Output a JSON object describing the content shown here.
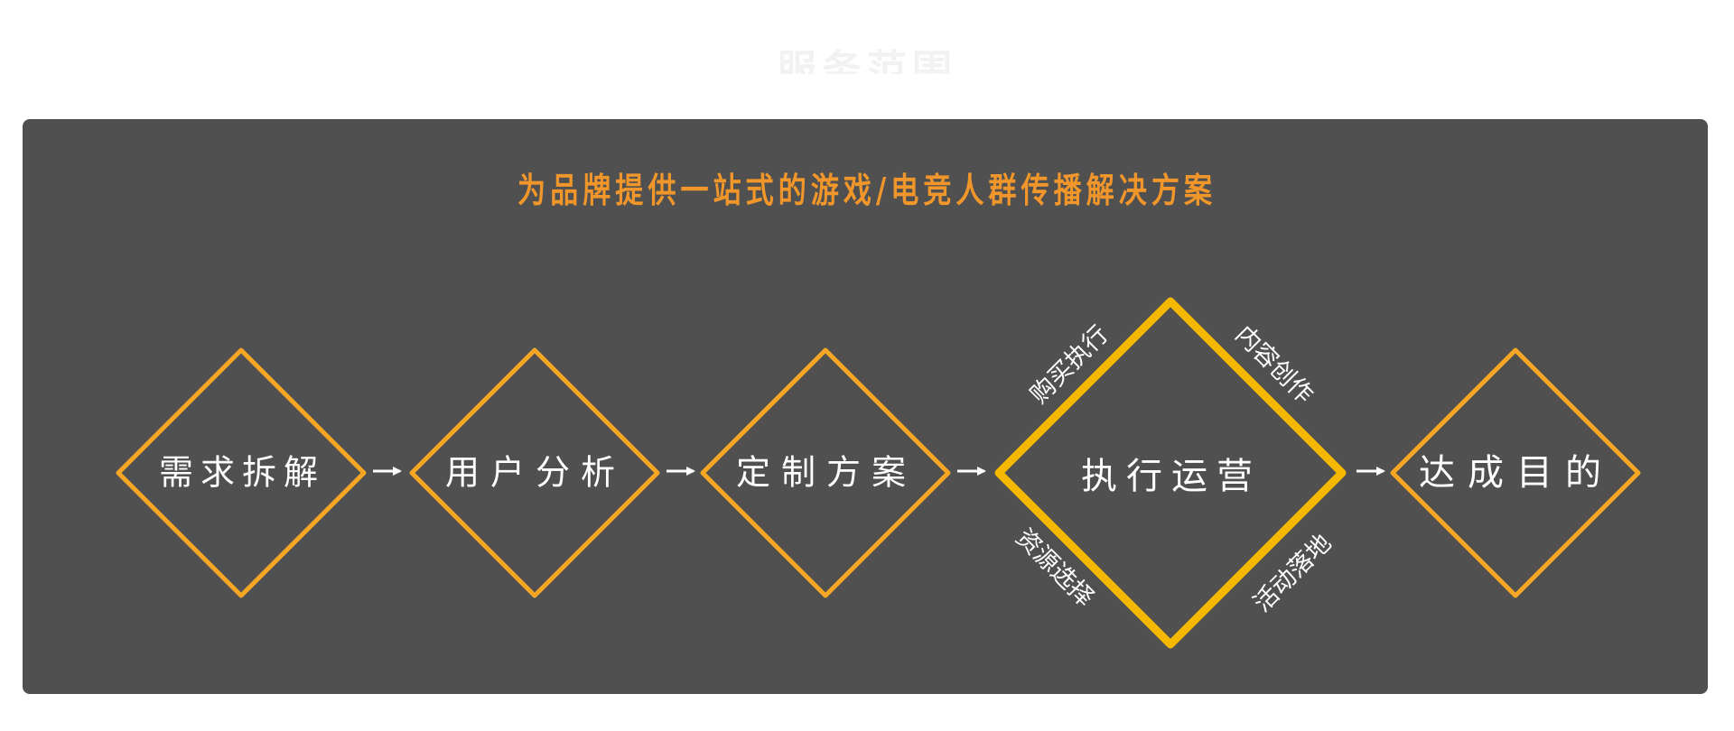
{
  "header": {
    "faint_title": "服务范围"
  },
  "panel": {
    "title": "为品牌提供一站式的游戏/电竞人群传播解决方案",
    "title_color": "#f0962a",
    "background": "#505050"
  },
  "colors": {
    "step_border": "#f5a623",
    "highlight_border": "#f5b800",
    "text": "#ffffff",
    "arrow": "#ffffff"
  },
  "steps": [
    {
      "label": "需求拆解"
    },
    {
      "label": "用户分析"
    },
    {
      "label": "定制方案"
    },
    {
      "label": "执行运营",
      "highlight": true
    },
    {
      "label": "达成目的"
    }
  ],
  "execution_facets": {
    "top_left": "购买执行",
    "top_right": "内容创作",
    "bottom_left": "资源选择",
    "bottom_right": "活动落地"
  }
}
